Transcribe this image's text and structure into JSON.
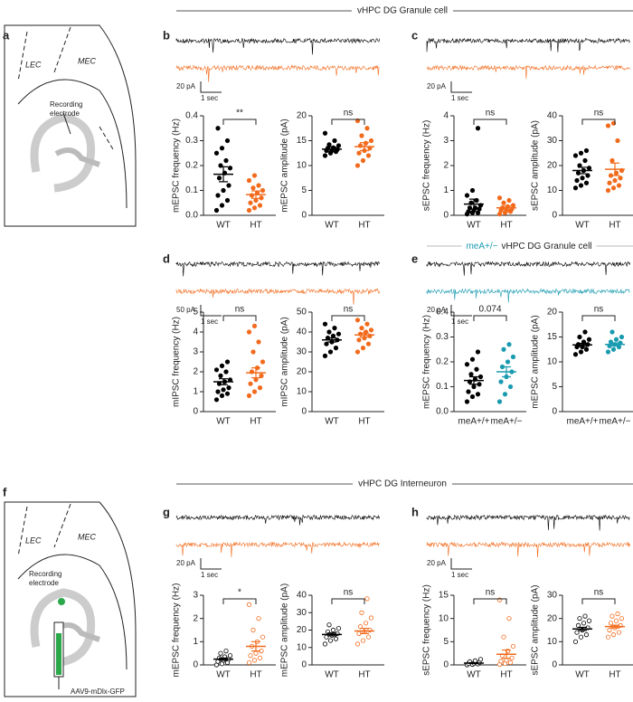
{
  "sections": [
    "vHPC DG Granule cell",
    "vHPC DG Interneuron"
  ],
  "schematics": [
    {
      "label": "a",
      "texts": [
        "LEC",
        "MEC",
        "Recording",
        "electrode"
      ]
    },
    {
      "label": "f",
      "texts": [
        "LEC",
        "MEC",
        "Recording",
        "electrode",
        "AAV9-mDlx-GFP"
      ]
    }
  ],
  "panels": [
    {
      "label": "b",
      "scale_y": "20 pA",
      "scale_x": "1 sec",
      "plots": [
        {
          "ylabel": "mEPSC frequency (Hz)",
          "ylim": [
            0,
            0.4
          ],
          "yticks": [
            {
              "value": 0,
              "label": "0.0"
            },
            0.1,
            0.2,
            0.3,
            0.4
          ],
          "categories": [
            "WT",
            "HT"
          ],
          "annotation": "**",
          "groups": [
            {
              "color": "#000000",
              "filled": true,
              "mean": 0.165,
              "sem": 0.03,
              "points": [
                0.02,
                0.04,
                0.06,
                0.08,
                0.1,
                0.12,
                0.15,
                0.17,
                0.19,
                0.2,
                0.22,
                0.25,
                0.27,
                0.3,
                0.35
              ]
            },
            {
              "color": "#f26b1d",
              "filled": true,
              "mean": 0.083,
              "sem": 0.015,
              "points": [
                0.02,
                0.03,
                0.04,
                0.05,
                0.06,
                0.07,
                0.08,
                0.09,
                0.1,
                0.11,
                0.12,
                0.14,
                0.16
              ]
            }
          ]
        },
        {
          "ylabel": "mEPSC amplitude (pA)",
          "ylim": [
            0,
            20
          ],
          "yticks": [
            0,
            5,
            10,
            15,
            20
          ],
          "categories": [
            "WT",
            "HT"
          ],
          "annotation": "ns",
          "groups": [
            {
              "color": "#000000",
              "filled": true,
              "mean": 13.3,
              "sem": 0.4,
              "points": [
                12,
                12.5,
                12.8,
                13,
                13,
                13.2,
                13.5,
                13.6,
                14,
                14.2,
                15,
                16.5
              ]
            },
            {
              "color": "#f26b1d",
              "filled": true,
              "mean": 13.8,
              "sem": 0.8,
              "points": [
                10,
                11,
                12,
                12.5,
                13,
                13.5,
                14,
                14.5,
                15,
                16,
                17.5,
                19
              ]
            }
          ]
        }
      ]
    },
    {
      "label": "c",
      "scale_y": "20 pA",
      "scale_x": "1 sec",
      "plots": [
        {
          "ylabel": "sEPSC frequency (Hz)",
          "ylim": [
            0,
            4
          ],
          "yticks": [
            0,
            1,
            2,
            3,
            4
          ],
          "categories": [
            "WT",
            "HT"
          ],
          "annotation": "ns",
          "groups": [
            {
              "color": "#000000",
              "filled": true,
              "mean": 0.45,
              "sem": 0.2,
              "points": [
                0.05,
                0.1,
                0.1,
                0.15,
                0.2,
                0.25,
                0.3,
                0.3,
                0.4,
                0.5,
                0.6,
                0.8,
                1,
                3.5
              ]
            },
            {
              "color": "#f26b1d",
              "filled": true,
              "mean": 0.3,
              "sem": 0.07,
              "points": [
                0.05,
                0.1,
                0.15,
                0.2,
                0.2,
                0.25,
                0.3,
                0.35,
                0.4,
                0.5,
                0.6,
                0.7
              ]
            }
          ]
        },
        {
          "ylabel": "sEPSC amplitude (pA)",
          "ylim": [
            0,
            40
          ],
          "yticks": [
            0,
            10,
            20,
            30,
            40
          ],
          "categories": [
            "WT",
            "HT"
          ],
          "annotation": "ns",
          "groups": [
            {
              "color": "#000000",
              "filled": true,
              "mean": 18,
              "sem": 1.3,
              "points": [
                11,
                12,
                13,
                14,
                15,
                16,
                17,
                18,
                19,
                20,
                22,
                24,
                25,
                26
              ]
            },
            {
              "color": "#f26b1d",
              "filled": true,
              "mean": 18.5,
              "sem": 2.5,
              "points": [
                10,
                11,
                12,
                13,
                14,
                15,
                16,
                17,
                18,
                22,
                30,
                36,
                37
              ]
            }
          ]
        }
      ]
    },
    {
      "label": "d",
      "scale_y": "50 pA",
      "scale_x": "1 sec",
      "plots": [
        {
          "ylabel": "mIPSC frequency (Hz)",
          "ylim": [
            0,
            5
          ],
          "yticks": [
            0,
            1,
            2,
            3,
            4,
            5
          ],
          "categories": [
            "WT",
            "HT"
          ],
          "annotation": "ns",
          "groups": [
            {
              "color": "#000000",
              "filled": true,
              "mean": 1.5,
              "sem": 0.15,
              "points": [
                0.6,
                0.8,
                0.9,
                1,
                1.1,
                1.2,
                1.4,
                1.5,
                1.6,
                1.8,
                2,
                2.1,
                2.3,
                2.5
              ]
            },
            {
              "color": "#f26b1d",
              "filled": true,
              "mean": 1.95,
              "sem": 0.25,
              "points": [
                0.8,
                1,
                1.2,
                1.4,
                1.6,
                1.8,
                2,
                2.2,
                2.5,
                3,
                3.5,
                4,
                4.3
              ]
            }
          ]
        },
        {
          "ylabel": "mIPSC amplitude (pA)",
          "ylim": [
            0,
            50
          ],
          "yticks": [
            0,
            10,
            20,
            30,
            40,
            50
          ],
          "categories": [
            "WT",
            "HT"
          ],
          "annotation": "ns",
          "groups": [
            {
              "color": "#000000",
              "filled": true,
              "mean": 36,
              "sem": 1,
              "points": [
                28,
                30,
                32,
                34,
                35,
                36,
                37,
                38,
                39,
                40,
                42,
                44
              ]
            },
            {
              "color": "#f26b1d",
              "filled": true,
              "mean": 38.5,
              "sem": 1,
              "points": [
                30,
                32,
                34,
                36,
                37,
                38,
                39,
                40,
                41,
                42,
                44,
                46
              ]
            }
          ]
        }
      ]
    },
    {
      "label": "e",
      "subtitle": {
        "genotype": "meA+/−",
        "text": "vHPC DG Granule cell"
      },
      "scale_y": "20 pA",
      "scale_x": "1 sec",
      "plots": [
        {
          "ylabel": "mEPSC frequency (Hz)",
          "ylim": [
            0,
            0.4
          ],
          "yticks": [
            {
              "value": 0,
              "label": "0.0"
            },
            0.1,
            0.2,
            0.3,
            0.4
          ],
          "categories": [
            "meA+/+",
            "meA+/−"
          ],
          "annotation": "0.074",
          "groups": [
            {
              "color": "#000000",
              "filled": true,
              "mean": 0.125,
              "sem": 0.015,
              "points": [
                0.04,
                0.06,
                0.07,
                0.08,
                0.1,
                0.11,
                0.12,
                0.13,
                0.14,
                0.15,
                0.17,
                0.19,
                0.21,
                0.24
              ]
            },
            {
              "color": "#1a9bb0",
              "filled": true,
              "mean": 0.16,
              "sem": 0.02,
              "points": [
                0.04,
                0.07,
                0.1,
                0.12,
                0.14,
                0.16,
                0.18,
                0.2,
                0.22,
                0.25,
                0.27
              ]
            }
          ]
        },
        {
          "ylabel": "mEPSC amplitude (pA)",
          "ylim": [
            0,
            20
          ],
          "yticks": [
            0,
            5,
            10,
            15,
            20
          ],
          "categories": [
            "meA+/+",
            "meA+/−"
          ],
          "annotation": "ns",
          "groups": [
            {
              "color": "#000000",
              "filled": true,
              "mean": 13.4,
              "sem": 0.3,
              "points": [
                11.5,
                12,
                12.5,
                13,
                13,
                13.5,
                13.5,
                14,
                14.5,
                15,
                16
              ]
            },
            {
              "color": "#1a9bb0",
              "filled": true,
              "mean": 13.5,
              "sem": 0.3,
              "points": [
                12,
                12.5,
                13,
                13.2,
                13.5,
                13.8,
                14,
                14.5,
                15,
                16
              ]
            }
          ]
        }
      ]
    },
    {
      "label": "g",
      "scale_y": "20 pA",
      "scale_x": "1 sec",
      "plots": [
        {
          "ylabel": "mEPSC frequency (Hz)",
          "ylim": [
            0,
            3
          ],
          "yticks": [
            0,
            1,
            2,
            3
          ],
          "categories": [
            "WT",
            "HT"
          ],
          "annotation": "*",
          "groups": [
            {
              "color": "#000000",
              "filled": false,
              "mean": 0.25,
              "sem": 0.05,
              "points": [
                0,
                0.05,
                0.1,
                0.15,
                0.2,
                0.25,
                0.3,
                0.35,
                0.4,
                0.5,
                0.6
              ]
            },
            {
              "color": "#f26b1d",
              "filled": false,
              "mean": 0.8,
              "sem": 0.2,
              "points": [
                0.1,
                0.2,
                0.3,
                0.4,
                0.5,
                0.6,
                0.8,
                1,
                1.2,
                1.5,
                2,
                2.6
              ]
            }
          ]
        },
        {
          "ylabel": "mEPSC amplitude (pA)",
          "ylim": [
            0,
            40
          ],
          "yticks": [
            0,
            10,
            20,
            30,
            40
          ],
          "categories": [
            "WT",
            "HT"
          ],
          "annotation": "ns",
          "groups": [
            {
              "color": "#000000",
              "filled": false,
              "mean": 17.5,
              "sem": 0.8,
              "points": [
                12,
                14,
                15,
                16,
                17,
                18,
                19,
                20,
                21,
                23
              ]
            },
            {
              "color": "#f26b1d",
              "filled": false,
              "mean": 19.5,
              "sem": 1.5,
              "points": [
                12,
                14,
                16,
                18,
                19,
                20,
                22,
                24,
                27,
                30,
                38
              ]
            }
          ]
        }
      ]
    },
    {
      "label": "h",
      "scale_y": "20 pA",
      "scale_x": "1 sec",
      "plots": [
        {
          "ylabel": "sEPSC frequency (Hz)",
          "ylim": [
            0,
            15
          ],
          "yticks": [
            0,
            5,
            10,
            15
          ],
          "categories": [
            "WT",
            "HT"
          ],
          "annotation": "ns",
          "groups": [
            {
              "color": "#000000",
              "filled": false,
              "mean": 0.4,
              "sem": 0.1,
              "points": [
                0,
                0.1,
                0.2,
                0.3,
                0.4,
                0.5,
                0.7,
                0.9,
                1.2
              ]
            },
            {
              "color": "#f26b1d",
              "filled": false,
              "mean": 2.3,
              "sem": 0.9,
              "points": [
                0.1,
                0.3,
                0.5,
                0.8,
                1,
                1.5,
                2,
                3,
                4,
                6,
                10,
                14
              ]
            }
          ]
        },
        {
          "ylabel": "sEPSC amplitude (pA)",
          "ylim": [
            0,
            30
          ],
          "yticks": [
            0,
            10,
            20,
            30
          ],
          "categories": [
            "WT",
            "HT"
          ],
          "annotation": "ns",
          "groups": [
            {
              "color": "#000000",
              "filled": false,
              "mean": 15.5,
              "sem": 0.7,
              "points": [
                10,
                12,
                13,
                14,
                15,
                16,
                17,
                18,
                19,
                20,
                21
              ]
            },
            {
              "color": "#f26b1d",
              "filled": false,
              "mean": 16.5,
              "sem": 0.6,
              "points": [
                12,
                13,
                14,
                15,
                16,
                17,
                18,
                19,
                20,
                21,
                22
              ]
            }
          ]
        }
      ]
    }
  ]
}
